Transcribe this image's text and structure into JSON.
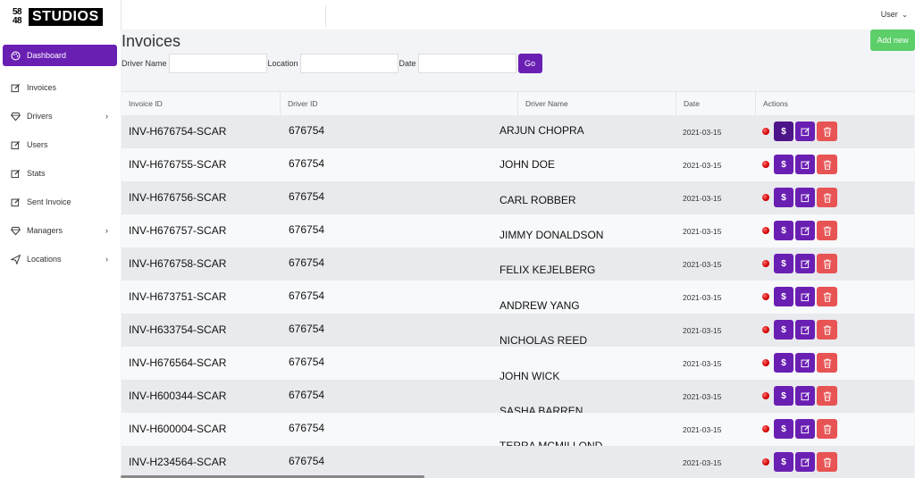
{
  "logo": {
    "top": "58",
    "bottom": "48",
    "word": "STUDIOS"
  },
  "user_menu": {
    "label": "User",
    "caret": "⌄"
  },
  "sidebar": {
    "items": [
      {
        "label": "Dashboard",
        "icon": "palette-icon",
        "active": true,
        "has_submenu": false
      },
      {
        "label": "Invoices",
        "icon": "edit-icon",
        "active": false,
        "has_submenu": false
      },
      {
        "label": "Drivers",
        "icon": "diamond-icon",
        "active": false,
        "has_submenu": true
      },
      {
        "label": "Users",
        "icon": "edit-icon",
        "active": false,
        "has_submenu": false
      },
      {
        "label": "Stats",
        "icon": "edit-icon",
        "active": false,
        "has_submenu": false
      },
      {
        "label": "Sent Invoice",
        "icon": "edit-icon",
        "active": false,
        "has_submenu": false
      },
      {
        "label": "Managers",
        "icon": "diamond-icon",
        "active": false,
        "has_submenu": true
      },
      {
        "label": "Locations",
        "icon": "send-icon",
        "active": false,
        "has_submenu": true
      }
    ]
  },
  "page": {
    "title": "Invoices",
    "add_new_label": "Add new"
  },
  "filters": {
    "driver_name_label": "Driver Name",
    "driver_name_value": "",
    "location_label": "Location",
    "location_value": "",
    "date_label": "Date",
    "date_value": "",
    "go_label": "Go"
  },
  "table": {
    "headers": [
      "Invoice ID",
      "Driver ID",
      "Driver Name",
      "Date",
      "Actions"
    ],
    "pay_label": "$",
    "rows": [
      {
        "invoice_id": "INV-H676754-SCAR",
        "driver_id": "676754",
        "driver_name": "ARJUN CHOPRA",
        "date": "2021-03-15"
      },
      {
        "invoice_id": "INV-H676755-SCAR",
        "driver_id": "676754",
        "driver_name": "JOHN DOE",
        "date": "2021-03-15"
      },
      {
        "invoice_id": "INV-H676756-SCAR",
        "driver_id": "676754",
        "driver_name": "CARL ROBBER",
        "date": "2021-03-15"
      },
      {
        "invoice_id": "INV-H676757-SCAR",
        "driver_id": "676754",
        "driver_name": "JIMMY DONALDSON",
        "date": "2021-03-15"
      },
      {
        "invoice_id": "INV-H676758-SCAR",
        "driver_id": "676754",
        "driver_name": "FELIX KEJELBERG",
        "date": "2021-03-15"
      },
      {
        "invoice_id": "INV-H673751-SCAR",
        "driver_id": "676754",
        "driver_name": "ANDREW YANG",
        "date": "2021-03-15"
      },
      {
        "invoice_id": "INV-H633754-SCAR",
        "driver_id": "676754",
        "driver_name": "NICHOLAS REED",
        "date": "2021-03-15"
      },
      {
        "invoice_id": "INV-H676564-SCAR",
        "driver_id": "676754",
        "driver_name": "JOHN WICK",
        "date": "2021-03-15"
      },
      {
        "invoice_id": "INV-H600344-SCAR",
        "driver_id": "676754",
        "driver_name": "SASHA BARREN",
        "date": "2021-03-15"
      },
      {
        "invoice_id": "INV-H600004-SCAR",
        "driver_id": "676754",
        "driver_name": "TERRA MCMILLOND",
        "date": "2021-03-15"
      },
      {
        "invoice_id": "INV-H234564-SCAR",
        "driver_id": "676754",
        "driver_name": "",
        "date": "2021-03-15"
      }
    ]
  },
  "colors": {
    "accent": "#6a1fb3",
    "success": "#5ccf68",
    "danger": "#e85454",
    "status_dot": "#d00000"
  }
}
